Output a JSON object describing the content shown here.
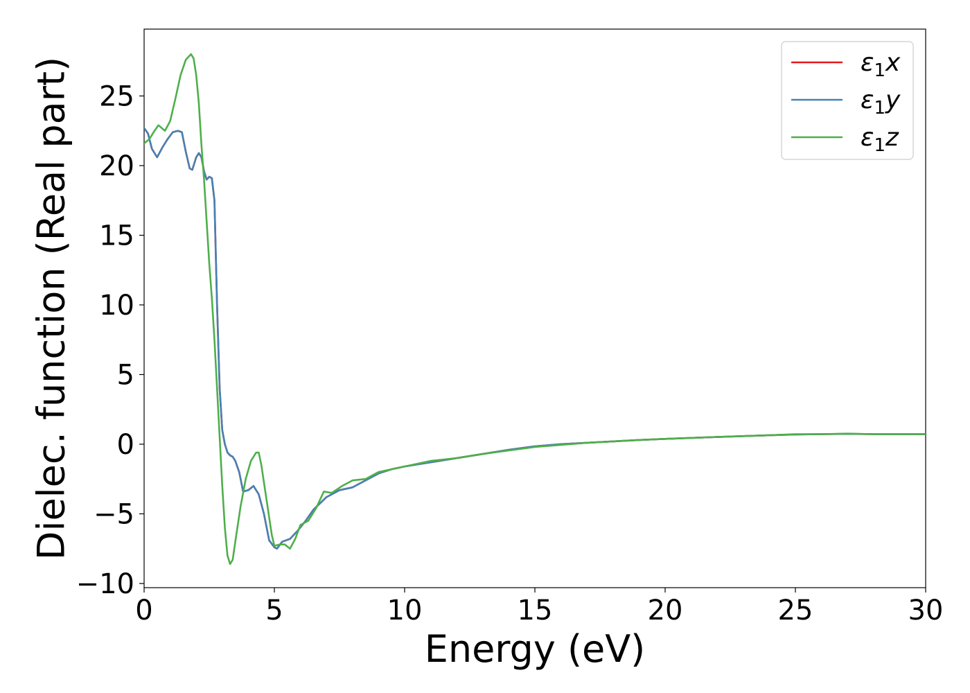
{
  "chart_data": {
    "type": "line",
    "xlabel": "Energy (eV)",
    "ylabel": "Dielec. function (Real part)",
    "xlim": [
      0,
      30
    ],
    "ylim": [
      -10.3,
      29.8
    ],
    "xticks": [
      0,
      5,
      10,
      15,
      20,
      25,
      30
    ],
    "xtick_labels": [
      "0",
      "5",
      "10",
      "15",
      "20",
      "25",
      "30"
    ],
    "yticks": [
      -10,
      -5,
      0,
      5,
      10,
      15,
      20,
      25
    ],
    "ytick_labels": [
      "−10",
      "−5",
      "0",
      "5",
      "10",
      "15",
      "20",
      "25"
    ],
    "legend_position": "top-right",
    "grid": false,
    "series": [
      {
        "name": "ε",
        "sub": "1",
        "suffix": "x",
        "color": "#e41a1c",
        "x": [
          0,
          0.15,
          0.3,
          0.5,
          0.7,
          0.9,
          1.1,
          1.3,
          1.45,
          1.6,
          1.75,
          1.85,
          2.0,
          2.1,
          2.2,
          2.3,
          2.4,
          2.5,
          2.6,
          2.7,
          2.8,
          2.9,
          3.0,
          3.1,
          3.2,
          3.3,
          3.4,
          3.5,
          3.65,
          3.8,
          4.0,
          4.2,
          4.4,
          4.6,
          4.8,
          5.0,
          5.1,
          5.3,
          5.6,
          5.9,
          6.2,
          6.5,
          7.0,
          7.5,
          8.0,
          8.5,
          9.0,
          9.5,
          10,
          11,
          12,
          13,
          14,
          15,
          16,
          17,
          18,
          19,
          20,
          21,
          22,
          23,
          24,
          25,
          26,
          27,
          28,
          29,
          30
        ],
        "y": [
          22.7,
          22.3,
          21.2,
          20.6,
          21.3,
          21.9,
          22.4,
          22.5,
          22.4,
          21.0,
          19.8,
          19.7,
          20.6,
          20.9,
          20.6,
          19.6,
          19.0,
          19.2,
          19.1,
          17.5,
          10.0,
          4.0,
          1.0,
          0.0,
          -0.6,
          -0.8,
          -0.9,
          -1.2,
          -2.0,
          -3.4,
          -3.3,
          -3.0,
          -3.6,
          -5.0,
          -6.9,
          -7.4,
          -7.5,
          -7.0,
          -6.8,
          -6.2,
          -5.5,
          -4.7,
          -3.8,
          -3.3,
          -3.1,
          -2.6,
          -2.1,
          -1.8,
          -1.6,
          -1.3,
          -1.0,
          -0.7,
          -0.4,
          -0.15,
          0.0,
          0.1,
          0.2,
          0.3,
          0.38,
          0.45,
          0.52,
          0.58,
          0.64,
          0.7,
          0.72,
          0.74,
          0.72,
          0.72,
          0.72
        ]
      },
      {
        "name": "ε",
        "sub": "1",
        "suffix": "y",
        "color": "#4682b4",
        "x": [
          0,
          0.15,
          0.3,
          0.5,
          0.7,
          0.9,
          1.1,
          1.3,
          1.45,
          1.6,
          1.75,
          1.85,
          2.0,
          2.1,
          2.2,
          2.3,
          2.4,
          2.5,
          2.6,
          2.7,
          2.8,
          2.9,
          3.0,
          3.1,
          3.2,
          3.3,
          3.4,
          3.5,
          3.65,
          3.8,
          4.0,
          4.2,
          4.4,
          4.6,
          4.8,
          5.0,
          5.1,
          5.3,
          5.6,
          5.9,
          6.2,
          6.5,
          7.0,
          7.5,
          8.0,
          8.5,
          9.0,
          9.5,
          10,
          11,
          12,
          13,
          14,
          15,
          16,
          17,
          18,
          19,
          20,
          21,
          22,
          23,
          24,
          25,
          26,
          27,
          28,
          29,
          30
        ],
        "y": [
          22.7,
          22.3,
          21.2,
          20.6,
          21.3,
          21.9,
          22.4,
          22.5,
          22.4,
          21.0,
          19.8,
          19.7,
          20.6,
          20.9,
          20.6,
          19.6,
          19.0,
          19.2,
          19.1,
          17.5,
          10.0,
          4.0,
          1.0,
          0.0,
          -0.6,
          -0.8,
          -0.9,
          -1.2,
          -2.0,
          -3.4,
          -3.3,
          -3.0,
          -3.6,
          -5.0,
          -6.9,
          -7.4,
          -7.5,
          -7.0,
          -6.8,
          -6.2,
          -5.5,
          -4.7,
          -3.8,
          -3.3,
          -3.1,
          -2.6,
          -2.1,
          -1.8,
          -1.6,
          -1.3,
          -1.0,
          -0.7,
          -0.4,
          -0.15,
          0.0,
          0.1,
          0.2,
          0.3,
          0.38,
          0.45,
          0.52,
          0.58,
          0.64,
          0.7,
          0.72,
          0.74,
          0.72,
          0.72,
          0.72
        ]
      },
      {
        "name": "ε",
        "sub": "1",
        "suffix": "z",
        "color": "#4daf4a",
        "x": [
          0,
          0.2,
          0.4,
          0.55,
          0.8,
          1.0,
          1.2,
          1.4,
          1.6,
          1.8,
          1.9,
          2.0,
          2.1,
          2.2,
          2.3,
          2.4,
          2.5,
          2.6,
          2.7,
          2.8,
          2.9,
          3.0,
          3.1,
          3.2,
          3.3,
          3.4,
          3.5,
          3.7,
          3.9,
          4.1,
          4.3,
          4.4,
          4.5,
          4.7,
          4.9,
          5.0,
          5.2,
          5.4,
          5.6,
          5.8,
          6.0,
          6.3,
          6.6,
          6.9,
          7.2,
          7.6,
          8.0,
          8.5,
          9.0,
          9.5,
          10,
          11,
          12,
          13,
          14,
          15,
          16,
          17,
          18,
          19,
          20,
          21,
          22,
          23,
          24,
          25,
          26,
          27,
          28,
          29,
          30
        ],
        "y": [
          21.6,
          21.9,
          22.5,
          22.9,
          22.5,
          23.2,
          24.8,
          26.5,
          27.6,
          28.0,
          27.7,
          26.5,
          24.5,
          21.5,
          19.0,
          16.0,
          13.0,
          10.5,
          7.5,
          4.0,
          0.5,
          -3.0,
          -6.0,
          -8.0,
          -8.6,
          -8.3,
          -7.0,
          -4.5,
          -2.5,
          -1.2,
          -0.6,
          -0.6,
          -1.5,
          -4.0,
          -6.5,
          -7.3,
          -7.2,
          -7.2,
          -7.5,
          -6.8,
          -5.8,
          -5.5,
          -4.6,
          -3.4,
          -3.5,
          -3.0,
          -2.6,
          -2.5,
          -2.0,
          -1.8,
          -1.6,
          -1.2,
          -1.0,
          -0.7,
          -0.45,
          -0.2,
          -0.05,
          0.1,
          0.2,
          0.3,
          0.38,
          0.45,
          0.52,
          0.58,
          0.64,
          0.72,
          0.72,
          0.76,
          0.72,
          0.72,
          0.72
        ]
      }
    ]
  }
}
